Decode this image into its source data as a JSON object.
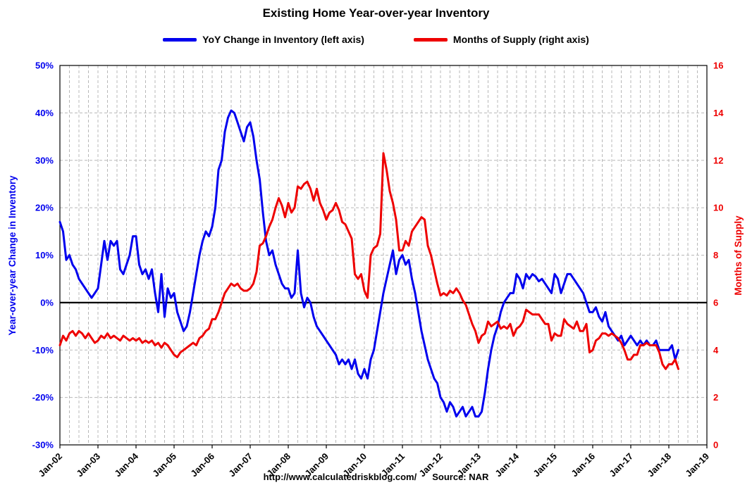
{
  "page": {
    "footer": {
      "url": "http://www.calculatedriskblog.com/",
      "source": "Source: NAR"
    }
  },
  "chart_data": {
    "type": "line",
    "title": "Existing Home Year-over-year Inventory",
    "grid": "dashed",
    "zero_line": true,
    "legend_position": "top-center",
    "x_axis": {
      "tick_labels": [
        "Jan-02",
        "Jan-03",
        "Jan-04",
        "Jan-05",
        "Jan-06",
        "Jan-07",
        "Jan-08",
        "Jan-09",
        "Jan-10",
        "Jan-11",
        "Jan-12",
        "Jan-13",
        "Jan-14",
        "Jan-15",
        "Jan-16",
        "Jan-17",
        "Jan-18",
        "Jan-19"
      ],
      "total_months": 204,
      "data_start": "Jan-02",
      "data_end": "Apr-18",
      "frequency": "monthly"
    },
    "left_axis": {
      "label": "Year-over-year Change in Inventory",
      "min": -30,
      "max": 50,
      "step": 10,
      "unit": "%",
      "color": "#0000ee"
    },
    "right_axis": {
      "label": "Months of Supply",
      "min": 0,
      "max": 16,
      "step": 2,
      "color": "#ee0000"
    },
    "series": [
      {
        "name": "YoY Change in Inventory (left axis)",
        "axis": "left",
        "color": "#0000ee",
        "values": [
          17,
          15,
          9,
          10,
          8,
          7,
          5,
          4,
          3,
          2,
          1,
          2,
          3,
          8,
          13,
          9,
          13,
          12,
          13,
          7,
          6,
          8,
          10,
          14,
          14,
          8,
          6,
          7,
          5,
          7,
          2,
          -2,
          6,
          -3,
          3,
          1,
          2,
          -2,
          -4,
          -6,
          -5,
          -2,
          2,
          6,
          10,
          13,
          15,
          14,
          16,
          20,
          28,
          30,
          36,
          39,
          40.5,
          40,
          38,
          36,
          34,
          37,
          38,
          35,
          30,
          26,
          19,
          13,
          10,
          11,
          8,
          6,
          4,
          3,
          3,
          1,
          2,
          11,
          2,
          -1,
          1,
          0,
          -3,
          -5,
          -6,
          -7,
          -8,
          -9,
          -10,
          -11,
          -13,
          -12,
          -13,
          -12,
          -14,
          -12,
          -15,
          -16,
          -14,
          -16,
          -12,
          -10,
          -6,
          -2,
          2,
          5,
          8,
          11,
          6,
          9,
          10,
          8,
          9,
          5,
          2,
          -2,
          -6,
          -9,
          -12,
          -14,
          -16,
          -17,
          -20,
          -21,
          -23,
          -21,
          -22,
          -24,
          -23,
          -22,
          -24,
          -23,
          -22,
          -24,
          -24,
          -23,
          -19,
          -14,
          -10,
          -7,
          -5,
          -2,
          0,
          1,
          2,
          2,
          6,
          5,
          3,
          6,
          5,
          6,
          5.5,
          4.5,
          5,
          4,
          3,
          2,
          6,
          5,
          2,
          4,
          6,
          6,
          5,
          4,
          3,
          2,
          0,
          -2,
          -2,
          -1,
          -3,
          -4,
          -2,
          -5,
          -6,
          -7,
          -8,
          -7,
          -9,
          -8,
          -7,
          -8,
          -9,
          -8,
          -9,
          -8,
          -9,
          -9,
          -8,
          -10,
          -10,
          -10,
          -10,
          -9,
          -12,
          -10
        ]
      },
      {
        "name": "Months of Supply (right axis)",
        "axis": "right",
        "color": "#ee0000",
        "values": [
          4.2,
          4.6,
          4.4,
          4.7,
          4.8,
          4.6,
          4.8,
          4.7,
          4.5,
          4.7,
          4.5,
          4.3,
          4.4,
          4.6,
          4.5,
          4.7,
          4.5,
          4.6,
          4.5,
          4.4,
          4.6,
          4.5,
          4.4,
          4.5,
          4.4,
          4.5,
          4.3,
          4.4,
          4.3,
          4.4,
          4.2,
          4.3,
          4.1,
          4.3,
          4.2,
          4.0,
          3.8,
          3.7,
          3.9,
          4.0,
          4.1,
          4.2,
          4.3,
          4.2,
          4.5,
          4.6,
          4.8,
          4.9,
          5.3,
          5.3,
          5.6,
          6.0,
          6.4,
          6.6,
          6.8,
          6.7,
          6.8,
          6.6,
          6.5,
          6.5,
          6.6,
          6.8,
          7.3,
          8.4,
          8.5,
          8.8,
          9.2,
          9.5,
          10.0,
          10.4,
          10.1,
          9.6,
          10.2,
          9.8,
          10.0,
          10.9,
          10.8,
          11.0,
          11.1,
          10.8,
          10.3,
          10.8,
          10.2,
          9.9,
          9.5,
          9.8,
          9.9,
          10.2,
          9.9,
          9.4,
          9.3,
          9.0,
          8.7,
          7.2,
          7.0,
          7.2,
          6.5,
          6.2,
          8.0,
          8.3,
          8.4,
          8.9,
          12.3,
          11.6,
          10.7,
          10.2,
          9.5,
          8.2,
          8.2,
          8.6,
          8.4,
          9.0,
          9.2,
          9.4,
          9.6,
          9.5,
          8.4,
          8.0,
          7.4,
          6.8,
          6.3,
          6.4,
          6.3,
          6.5,
          6.4,
          6.6,
          6.4,
          6.1,
          5.9,
          5.5,
          5.1,
          4.8,
          4.3,
          4.6,
          4.7,
          5.2,
          5.0,
          5.1,
          5.2,
          4.9,
          5.0,
          4.9,
          5.1,
          4.6,
          4.9,
          5.0,
          5.2,
          5.7,
          5.6,
          5.5,
          5.5,
          5.5,
          5.3,
          5.1,
          5.1,
          4.4,
          4.7,
          4.6,
          4.6,
          5.3,
          5.1,
          5.0,
          4.9,
          5.2,
          4.8,
          4.8,
          5.1,
          3.9,
          4.0,
          4.4,
          4.5,
          4.7,
          4.7,
          4.6,
          4.7,
          4.6,
          4.5,
          4.3,
          4.0,
          3.6,
          3.6,
          3.8,
          3.8,
          4.2,
          4.2,
          4.3,
          4.2,
          4.2,
          4.2,
          3.9,
          3.4,
          3.2,
          3.4,
          3.4,
          3.6,
          3.2
        ]
      }
    ]
  }
}
